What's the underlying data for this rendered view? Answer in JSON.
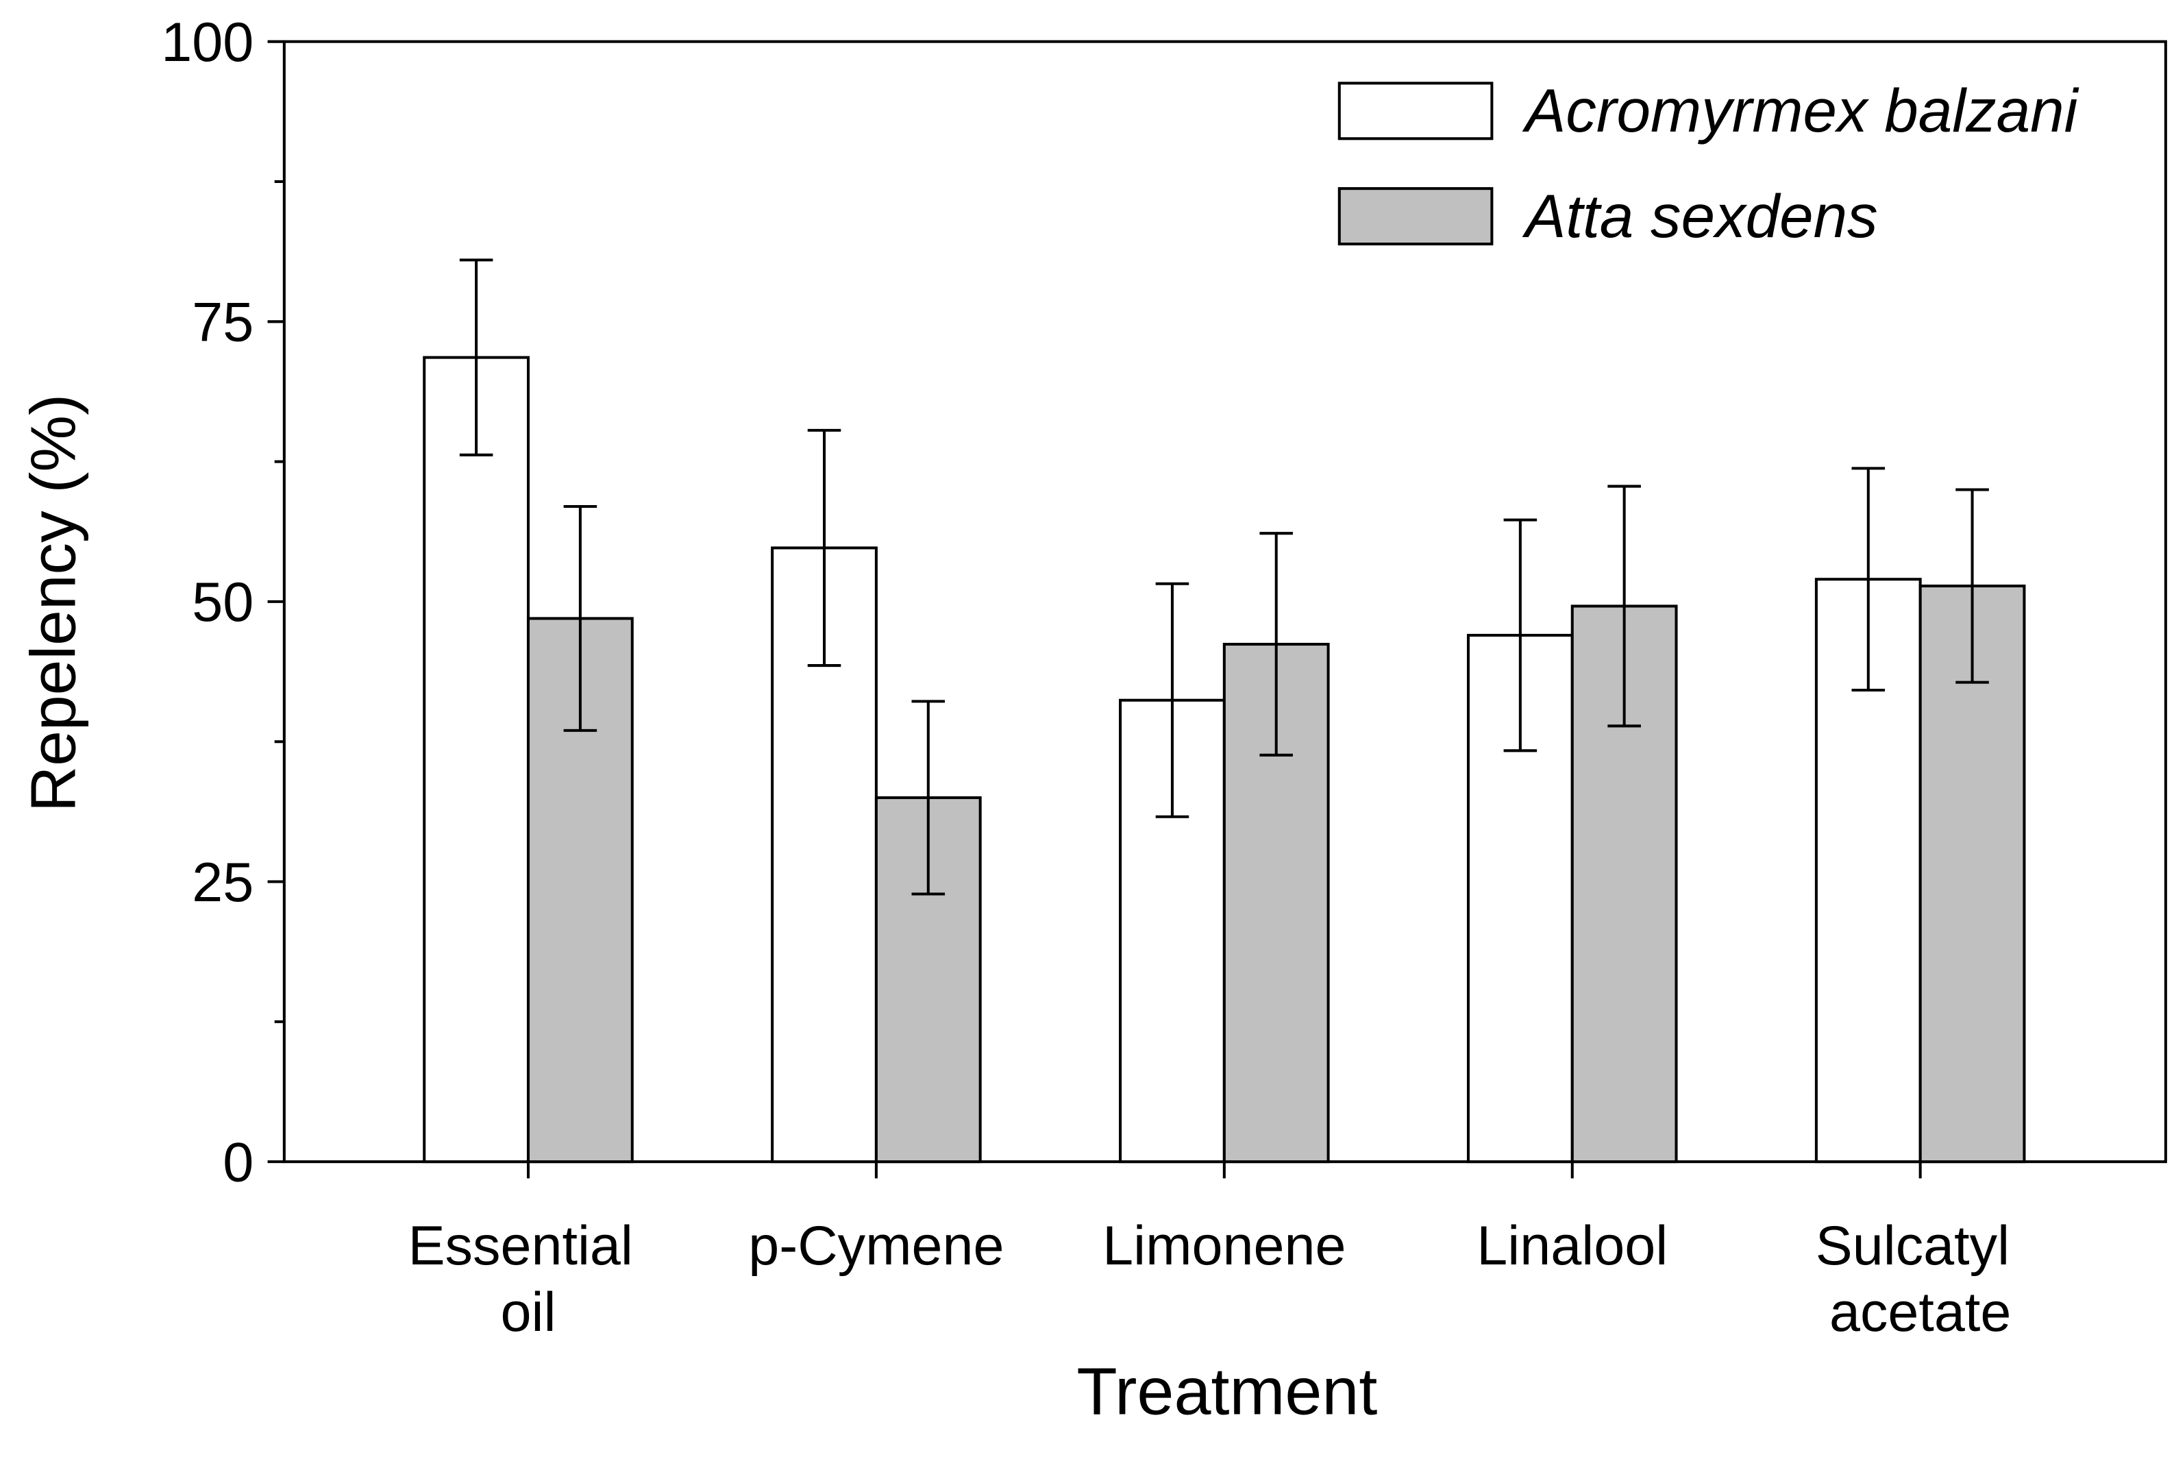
{
  "chart_data": {
    "type": "bar",
    "x_label": "Treatment",
    "y_label": "Repelency (%)",
    "categories": [
      "Essential oil",
      "p-Cymene",
      "Limonene",
      "Linalool",
      "Sulcatyl acetate"
    ],
    "series": [
      {
        "name": "Acromyrmex balzani",
        "color": "#ffffff",
        "values": [
          71.8,
          54.8,
          41.2,
          47.0,
          52.0
        ],
        "errors": [
          8.7,
          10.5,
          10.4,
          10.3,
          9.9
        ]
      },
      {
        "name": "Atta sexdens",
        "color": "#c0c0c0",
        "values": [
          48.5,
          32.5,
          46.2,
          49.6,
          51.4
        ],
        "errors": [
          10.0,
          8.6,
          9.9,
          10.7,
          8.6
        ]
      }
    ],
    "ylim": [
      0,
      100
    ],
    "yticks": [
      0,
      25,
      50,
      75,
      100
    ],
    "minor_yticks": [
      12.5,
      37.5,
      62.5,
      87.5
    ],
    "legend": "upper right"
  }
}
